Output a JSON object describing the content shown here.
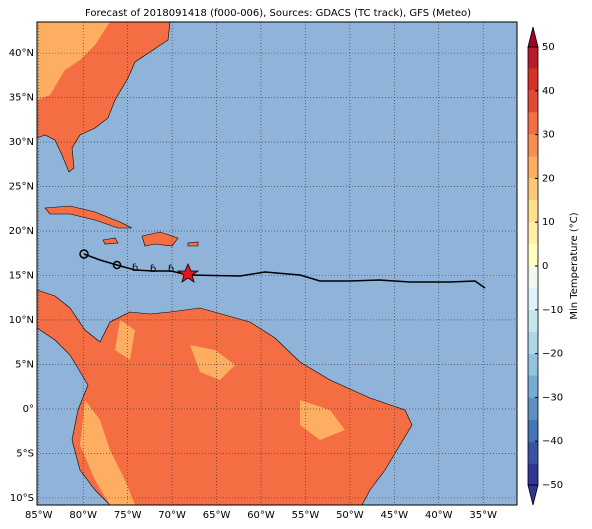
{
  "title": "Forecast of 2018091418 (f000-006), Sources: GDACS (TC track), GFS (Meteo)",
  "map": {
    "xlim": [
      -85.2,
      -31.2
    ],
    "ylim": [
      -10.8,
      43.5
    ],
    "xticks": [
      {
        "value": -85,
        "label": "85°W"
      },
      {
        "value": -80,
        "label": "80°W"
      },
      {
        "value": -75,
        "label": "75°W"
      },
      {
        "value": -70,
        "label": "70°W"
      },
      {
        "value": -65,
        "label": "65°W"
      },
      {
        "value": -60,
        "label": "60°W"
      },
      {
        "value": -55,
        "label": "55°W"
      },
      {
        "value": -50,
        "label": "50°W"
      },
      {
        "value": -45,
        "label": "45°W"
      },
      {
        "value": -40,
        "label": "40°W"
      },
      {
        "value": -35,
        "label": "35°W"
      }
    ],
    "yticks": [
      {
        "value": -10,
        "label": "10°S"
      },
      {
        "value": -5,
        "label": "5°S"
      },
      {
        "value": 0,
        "label": "0°"
      },
      {
        "value": 5,
        "label": "5°N"
      },
      {
        "value": 10,
        "label": "10°N"
      },
      {
        "value": 15,
        "label": "15°N"
      },
      {
        "value": 20,
        "label": "20°N"
      },
      {
        "value": 25,
        "label": "25°N"
      },
      {
        "value": 30,
        "label": "30°N"
      },
      {
        "value": 35,
        "label": "35°N"
      },
      {
        "value": 40,
        "label": "40°N"
      }
    ],
    "grid": true
  },
  "colorbar": {
    "label": "Min Temperature (°C)",
    "lim": [
      -50,
      50
    ],
    "levels": [
      -50,
      -45,
      -40,
      -35,
      -30,
      -25,
      -20,
      -15,
      -10,
      -5,
      0,
      5,
      10,
      15,
      20,
      25,
      30,
      35,
      40,
      45,
      50
    ],
    "colors": [
      "#313695",
      "#3a54a4",
      "#4575b4",
      "#5f8fc3",
      "#74add1",
      "#93c4de",
      "#abd9e9",
      "#c6e6f0",
      "#e0f3f8",
      "#f0f9ee",
      "#ffffbf",
      "#fff0a8",
      "#fee090",
      "#fdc877",
      "#fdae61",
      "#f88e52",
      "#f46d43",
      "#e34933",
      "#d73027",
      "#bb1a28",
      "#a50026"
    ],
    "ticks": [
      {
        "value": -50,
        "label": "−50"
      },
      {
        "value": -40,
        "label": "−40"
      },
      {
        "value": -30,
        "label": "−30"
      },
      {
        "value": -20,
        "label": "−20"
      },
      {
        "value": -10,
        "label": "−10"
      },
      {
        "value": 0,
        "label": "0"
      },
      {
        "value": 10,
        "label": "10"
      },
      {
        "value": 20,
        "label": "20"
      },
      {
        "value": 30,
        "label": "30"
      },
      {
        "value": 40,
        "label": "40"
      },
      {
        "value": 50,
        "label": "50"
      }
    ]
  }
}
